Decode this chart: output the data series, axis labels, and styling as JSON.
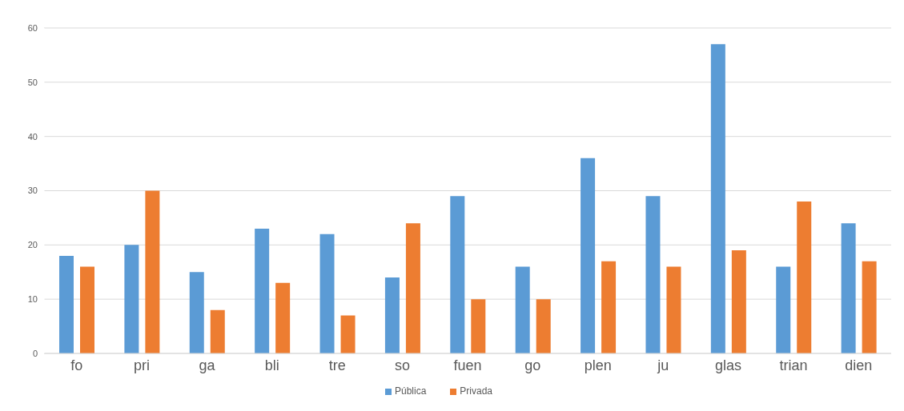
{
  "chart_data": {
    "type": "bar",
    "categories": [
      "fo",
      "pri",
      "ga",
      "bli",
      "tre",
      "so",
      "fuen",
      "go",
      "plen",
      "ju",
      "glas",
      "trian",
      "dien"
    ],
    "series": [
      {
        "name": "Pública",
        "color": "#5b9bd5",
        "values": [
          18,
          20,
          15,
          23,
          22,
          14,
          29,
          16,
          36,
          29,
          57,
          16,
          24
        ]
      },
      {
        "name": "Privada",
        "color": "#ed7d31",
        "values": [
          16,
          30,
          8,
          13,
          7,
          24,
          10,
          10,
          17,
          16,
          19,
          28,
          17
        ]
      }
    ],
    "ylim": [
      0,
      60
    ],
    "yticks": [
      0,
      10,
      20,
      30,
      40,
      50,
      60
    ],
    "grid": "y",
    "legend": "bottom"
  }
}
